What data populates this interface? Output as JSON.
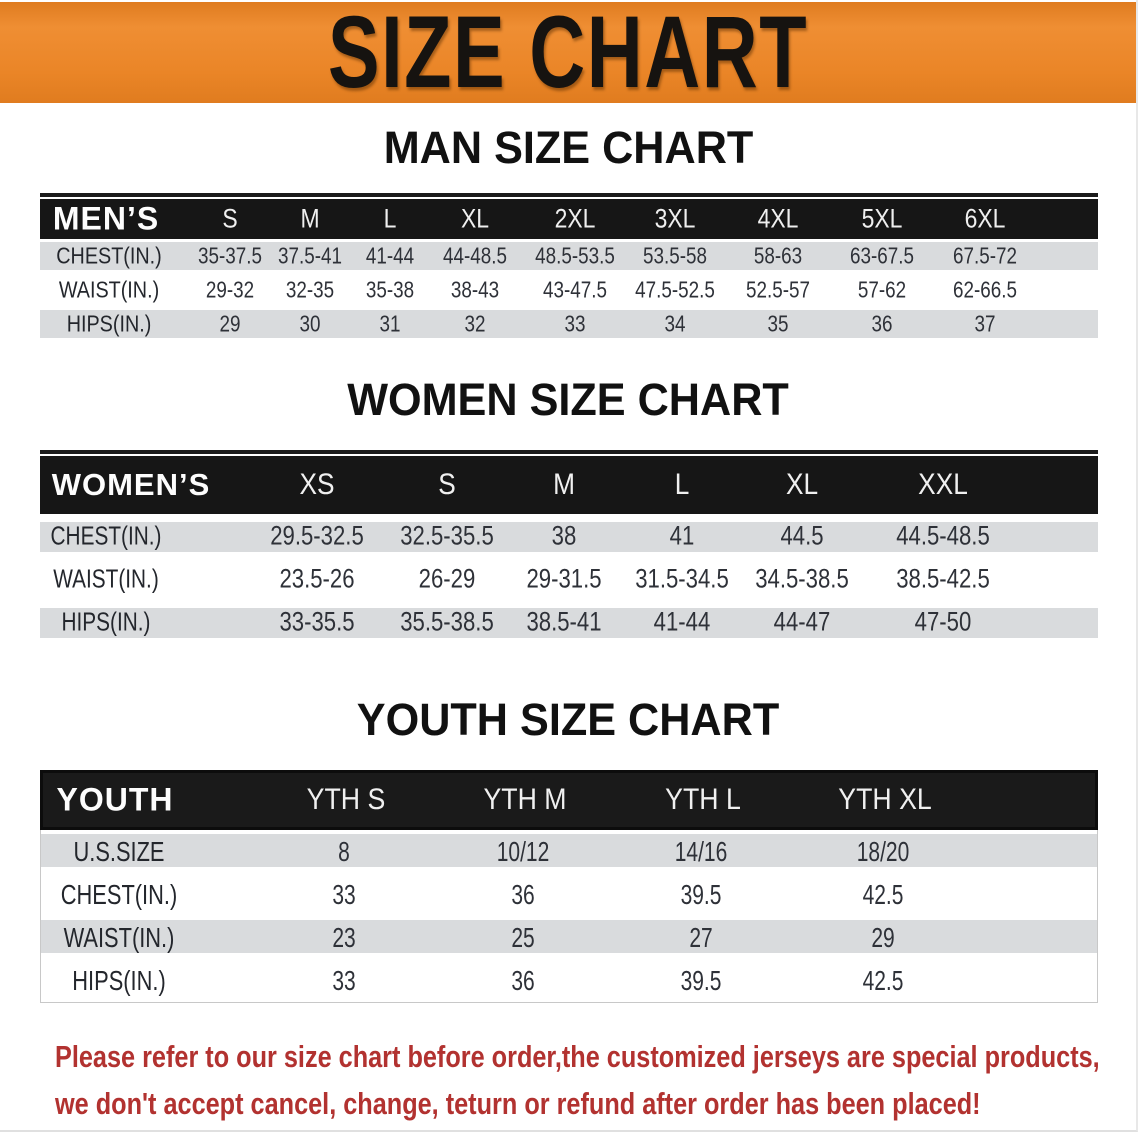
{
  "banner": {
    "title": "SIZE CHART",
    "bg_color": "#EA8527"
  },
  "sections": [
    {
      "title": "MAN SIZE CHART",
      "label": "MEN’S",
      "columns": [
        "S",
        "M",
        "L",
        "XL",
        "2XL",
        "3XL",
        "4XL",
        "5XL",
        "6XL"
      ],
      "rows": [
        {
          "label": "CHEST(IN.)",
          "values": [
            "35-37.5",
            "37.5-41",
            "41-44",
            "44-48.5",
            "48.5-53.5",
            "53.5-58",
            "58-63",
            "63-67.5",
            "67.5-72"
          ]
        },
        {
          "label": "WAIST(IN.)",
          "values": [
            "29-32",
            "32-35",
            "35-38",
            "38-43",
            "43-47.5",
            "47.5-52.5",
            "52.5-57",
            "57-62",
            "62-66.5"
          ]
        },
        {
          "label": "HIPS(IN.)",
          "values": [
            "29",
            "30",
            "31",
            "32",
            "33",
            "34",
            "35",
            "36",
            "37"
          ]
        }
      ]
    },
    {
      "title": "WOMEN SIZE CHART",
      "label": "WOMEN’S",
      "columns": [
        "XS",
        "S",
        "M",
        "L",
        "XL",
        "XXL"
      ],
      "rows": [
        {
          "label": "CHEST(IN.)",
          "values": [
            "29.5-32.5",
            "32.5-35.5",
            "38",
            "41",
            "44.5",
            "44.5-48.5"
          ]
        },
        {
          "label": "WAIST(IN.)",
          "values": [
            "23.5-26",
            "26-29",
            "29-31.5",
            "31.5-34.5",
            "34.5-38.5",
            "38.5-42.5"
          ]
        },
        {
          "label": "HIPS(IN.)",
          "values": [
            "33-35.5",
            "35.5-38.5",
            "38.5-41",
            "41-44",
            "44-47",
            "47-50"
          ]
        }
      ]
    },
    {
      "title": "YOUTH SIZE CHART",
      "label": "YOUTH",
      "columns": [
        "YTH S",
        "YTH M",
        "YTH L",
        "YTH XL"
      ],
      "rows": [
        {
          "label": "U.S.SIZE",
          "values": [
            "8",
            "10/12",
            "14/16",
            "18/20"
          ]
        },
        {
          "label": "CHEST(IN.)",
          "values": [
            "33",
            "36",
            "39.5",
            "42.5"
          ]
        },
        {
          "label": "WAIST(IN.)",
          "values": [
            "23",
            "25",
            "27",
            "29"
          ]
        },
        {
          "label": "HIPS(IN.)",
          "values": [
            "33",
            "36",
            "39.5",
            "42.5"
          ]
        }
      ]
    }
  ],
  "footnote": {
    "line1": "Please refer to our size chart before order,the customized jerseys are special products,",
    "line2": "we don't accept cancel, change, teturn or refund after order has been placed!",
    "color": "#B23230"
  },
  "colors": {
    "header_band": "#161616",
    "shade_row": "#D9DBDD"
  }
}
